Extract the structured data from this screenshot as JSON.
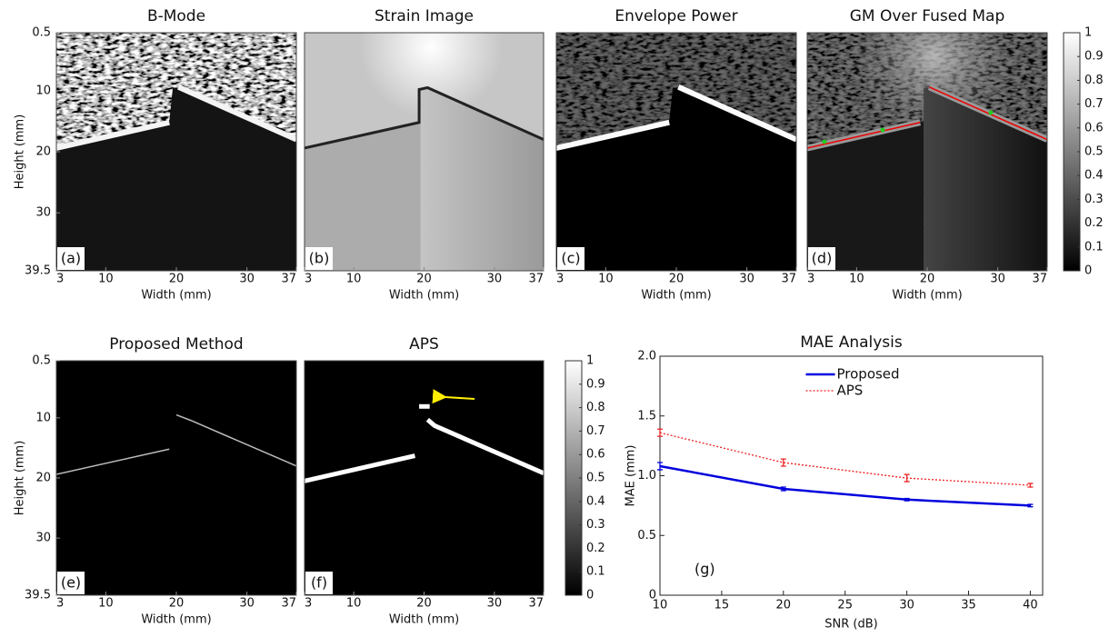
{
  "panels": [
    {
      "title": "B-Mode",
      "label": "(a)",
      "xlabel": "Width (mm)",
      "ylabel": "Height (mm)",
      "xlim": [
        3,
        37
      ],
      "ylim": [
        0.5,
        39.5
      ],
      "xticks": [
        3,
        10,
        20,
        30,
        37
      ],
      "yticks": [
        0.5,
        10,
        20,
        30,
        39.5
      ]
    },
    {
      "title": "Strain Image",
      "label": "(b)",
      "xlabel": "Width (mm)",
      "xlim": [
        3,
        37
      ],
      "ylim": [
        0.5,
        39.5
      ],
      "xticks": [
        3,
        10,
        20,
        30,
        37
      ]
    },
    {
      "title": "Envelope Power",
      "label": "(c)",
      "xlabel": "Width (mm)",
      "xlim": [
        3,
        37
      ],
      "ylim": [
        0.5,
        39.5
      ],
      "xticks": [
        3,
        10,
        20,
        30,
        37
      ]
    },
    {
      "title": "GM Over Fused Map",
      "label": "(d)",
      "xlabel": "Width (mm)",
      "xlim": [
        3,
        37
      ],
      "ylim": [
        0.5,
        39.5
      ],
      "xticks": [
        3,
        10,
        20,
        30,
        37
      ]
    },
    {
      "title": "Proposed Method",
      "label": "(e)",
      "xlabel": "Width (mm)",
      "ylabel": "Height (mm)",
      "xlim": [
        3,
        37
      ],
      "ylim": [
        0.5,
        39.5
      ],
      "xticks": [
        3,
        10,
        20,
        30,
        37
      ],
      "yticks": [
        0.5,
        10,
        20,
        30,
        39.5
      ]
    },
    {
      "title": "APS",
      "label": "(f)",
      "xlabel": "Width (mm)",
      "xlim": [
        3,
        37
      ],
      "ylim": [
        0.5,
        39.5
      ],
      "xticks": [
        3,
        10,
        20,
        30,
        37
      ]
    }
  ],
  "colorbars": [
    {
      "lim": [
        0,
        1
      ],
      "ticks": [
        0,
        0.1,
        0.2,
        0.3,
        0.4,
        0.5,
        0.6,
        0.7,
        0.8,
        0.9,
        1
      ]
    },
    {
      "lim": [
        0,
        1
      ],
      "ticks": [
        0,
        0.1,
        0.2,
        0.3,
        0.4,
        0.5,
        0.6,
        0.7,
        0.8,
        0.9,
        1
      ]
    }
  ],
  "chart_data": {
    "type": "line",
    "title": "MAE Analysis",
    "annotation": "(g)",
    "xlabel": "SNR (dB)",
    "ylabel": "MAE (mm)",
    "x": [
      10,
      20,
      30,
      40
    ],
    "series": [
      {
        "name": "Proposed",
        "color": "#0000dd",
        "style": "solid",
        "values": [
          1.08,
          0.89,
          0.8,
          0.75
        ],
        "errors": [
          0.03,
          0.015,
          0.01,
          0.01
        ]
      },
      {
        "name": "APS",
        "color": "#ee2222",
        "style": "dotted",
        "values": [
          1.36,
          1.11,
          0.98,
          0.92
        ],
        "errors": [
          0.03,
          0.03,
          0.03,
          0.015
        ]
      }
    ],
    "xlim": [
      10,
      41
    ],
    "ylim": [
      0,
      2
    ],
    "xticks": [
      10,
      15,
      20,
      25,
      30,
      35,
      40
    ],
    "yticks": [
      0,
      0.5,
      {
        "value": 1,
        "label": "1.0"
      },
      1.5,
      {
        "value": 2,
        "label": "2.0"
      }
    ],
    "legend": "upper center"
  }
}
